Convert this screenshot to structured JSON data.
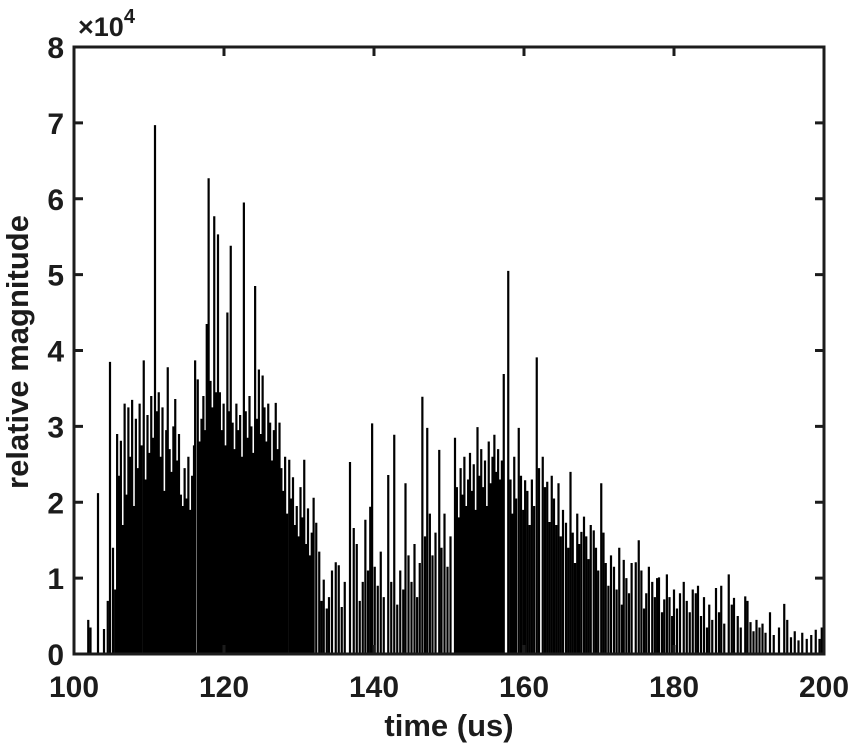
{
  "chart_data": {
    "type": "stem",
    "title": "",
    "xlabel": "time (us)",
    "ylabel": "relative magnitude",
    "y_axis_multiplier": {
      "prefix": "×10",
      "exponent": "4"
    },
    "xlim": [
      100,
      200
    ],
    "ylim": [
      0,
      8
    ],
    "y_unit_scale": 10000,
    "x_ticks": [
      100,
      120,
      140,
      160,
      180,
      200
    ],
    "y_ticks": [
      0,
      1,
      2,
      3,
      4,
      5,
      6,
      7,
      8
    ],
    "grid": false,
    "legend": null,
    "colors": {
      "line": "#000000",
      "axis": "#1c1c1c",
      "background": "#ffffff"
    },
    "points": [
      [
        101.9,
        0.45
      ],
      [
        102.2,
        0.35
      ],
      [
        103.2,
        2.12
      ],
      [
        104.0,
        0.33
      ],
      [
        104.5,
        0.7
      ],
      [
        104.8,
        3.85
      ],
      [
        105.2,
        1.4
      ],
      [
        105.5,
        0.85
      ],
      [
        105.75,
        2.9
      ],
      [
        106.0,
        2.35
      ],
      [
        106.25,
        2.81
      ],
      [
        106.5,
        1.7
      ],
      [
        106.75,
        3.3
      ],
      [
        107.0,
        2.1
      ],
      [
        107.25,
        3.25
      ],
      [
        107.5,
        2.6
      ],
      [
        107.75,
        3.35
      ],
      [
        108.0,
        1.95
      ],
      [
        108.25,
        3.1
      ],
      [
        108.5,
        2.45
      ],
      [
        108.75,
        3.3
      ],
      [
        109.0,
        2.75
      ],
      [
        109.3,
        3.87
      ],
      [
        109.55,
        2.3
      ],
      [
        109.8,
        3.15
      ],
      [
        110.05,
        2.65
      ],
      [
        110.3,
        3.4
      ],
      [
        110.55,
        2.85
      ],
      [
        110.8,
        6.97
      ],
      [
        111.05,
        3.2
      ],
      [
        111.3,
        3.45
      ],
      [
        111.55,
        2.6
      ],
      [
        111.8,
        3.25
      ],
      [
        112.05,
        2.15
      ],
      [
        112.3,
        2.95
      ],
      [
        112.5,
        3.78
      ],
      [
        112.75,
        2.7
      ],
      [
        113.0,
        2.4
      ],
      [
        113.25,
        3.0
      ],
      [
        113.5,
        3.36
      ],
      [
        113.75,
        2.55
      ],
      [
        114.0,
        2.9
      ],
      [
        114.25,
        2.1
      ],
      [
        114.5,
        1.95
      ],
      [
        114.75,
        2.45
      ],
      [
        115.0,
        2.05
      ],
      [
        115.25,
        2.6
      ],
      [
        115.5,
        1.9
      ],
      [
        115.75,
        2.35
      ],
      [
        116.0,
        2.75
      ],
      [
        116.15,
        3.87
      ],
      [
        116.5,
        3.62
      ],
      [
        116.75,
        2.8
      ],
      [
        117.0,
        3.1
      ],
      [
        117.25,
        3.4
      ],
      [
        117.5,
        2.95
      ],
      [
        117.7,
        4.35
      ],
      [
        117.95,
        6.27
      ],
      [
        118.2,
        3.6
      ],
      [
        118.45,
        3.25
      ],
      [
        118.7,
        5.77
      ],
      [
        118.95,
        3.45
      ],
      [
        119.2,
        5.53
      ],
      [
        119.45,
        3.45
      ],
      [
        119.7,
        2.95
      ],
      [
        119.95,
        3.3
      ],
      [
        120.2,
        2.75
      ],
      [
        120.45,
        4.5
      ],
      [
        120.7,
        3.2
      ],
      [
        120.9,
        5.38
      ],
      [
        121.15,
        3.05
      ],
      [
        121.4,
        2.7
      ],
      [
        121.65,
        3.3
      ],
      [
        121.9,
        2.95
      ],
      [
        122.15,
        3.15
      ],
      [
        122.4,
        2.6
      ],
      [
        122.65,
        5.95
      ],
      [
        122.9,
        3.2
      ],
      [
        123.15,
        2.85
      ],
      [
        123.4,
        3.4
      ],
      [
        123.65,
        3.0
      ],
      [
        123.9,
        2.65
      ],
      [
        124.15,
        4.85
      ],
      [
        124.4,
        3.1
      ],
      [
        124.65,
        3.75
      ],
      [
        124.9,
        2.9
      ],
      [
        125.15,
        3.67
      ],
      [
        125.4,
        3.25
      ],
      [
        125.65,
        2.8
      ],
      [
        125.9,
        3.3
      ],
      [
        126.15,
        3.05
      ],
      [
        126.4,
        2.55
      ],
      [
        126.65,
        2.95
      ],
      [
        126.9,
        3.31
      ],
      [
        127.15,
        2.7
      ],
      [
        127.4,
        3.05
      ],
      [
        127.65,
        2.45
      ],
      [
        127.9,
        2.15
      ],
      [
        128.15,
        2.6
      ],
      [
        128.4,
        1.85
      ],
      [
        128.7,
        2.56
      ],
      [
        128.95,
        2.05
      ],
      [
        129.2,
        2.33
      ],
      [
        129.45,
        1.7
      ],
      [
        129.7,
        1.95
      ],
      [
        129.95,
        1.55
      ],
      [
        130.2,
        2.2
      ],
      [
        130.45,
        1.8
      ],
      [
        130.7,
        2.56
      ],
      [
        130.95,
        1.45
      ],
      [
        131.2,
        1.92
      ],
      [
        131.45,
        1.3
      ],
      [
        131.7,
        1.6
      ],
      [
        131.95,
        2.06
      ],
      [
        132.3,
        1.73
      ],
      [
        132.7,
        1.35
      ],
      [
        133.0,
        0.7
      ],
      [
        133.3,
        0.98
      ],
      [
        133.7,
        0.6
      ],
      [
        134.0,
        0.75
      ],
      [
        134.4,
        1.1
      ],
      [
        134.9,
        1.21
      ],
      [
        135.3,
        1.17
      ],
      [
        135.7,
        0.62
      ],
      [
        136.1,
        0.95
      ],
      [
        136.8,
        2.53
      ],
      [
        137.3,
        1.66
      ],
      [
        137.7,
        1.45
      ],
      [
        138.1,
        0.7
      ],
      [
        138.5,
        0.95
      ],
      [
        138.85,
        1.77
      ],
      [
        139.2,
        1.1
      ],
      [
        139.5,
        1.94
      ],
      [
        139.75,
        3.04
      ],
      [
        140.1,
        1.15
      ],
      [
        140.5,
        0.9
      ],
      [
        140.9,
        1.35
      ],
      [
        141.3,
        0.75
      ],
      [
        141.9,
        2.36
      ],
      [
        142.3,
        0.95
      ],
      [
        142.7,
        2.89
      ],
      [
        143.1,
        0.65
      ],
      [
        143.5,
        1.1
      ],
      [
        143.9,
        0.85
      ],
      [
        144.2,
        2.25
      ],
      [
        144.6,
        1.3
      ],
      [
        145.0,
        0.95
      ],
      [
        145.4,
        1.45
      ],
      [
        145.75,
        0.75
      ],
      [
        146.1,
        1.2
      ],
      [
        146.45,
        3.39
      ],
      [
        146.8,
        1.55
      ],
      [
        147.1,
        2.98
      ],
      [
        147.45,
        1.85
      ],
      [
        147.8,
        1.3
      ],
      [
        148.2,
        1.6
      ],
      [
        148.7,
        2.69
      ],
      [
        149.0,
        1.4
      ],
      [
        149.4,
        1.85
      ],
      [
        149.8,
        1.15
      ],
      [
        150.2,
        1.55
      ],
      [
        150.8,
        2.85
      ],
      [
        151.05,
        2.2
      ],
      [
        151.3,
        1.8
      ],
      [
        151.55,
        2.45
      ],
      [
        151.8,
        2.1
      ],
      [
        152.05,
        2.6
      ],
      [
        152.3,
        1.95
      ],
      [
        152.55,
        2.3
      ],
      [
        152.8,
        2.65
      ],
      [
        153.05,
        2.15
      ],
      [
        153.3,
        2.5
      ],
      [
        153.55,
        1.9
      ],
      [
        153.8,
        2.99
      ],
      [
        154.05,
        2.35
      ],
      [
        154.3,
        2.7
      ],
      [
        154.55,
        2.2
      ],
      [
        154.8,
        2.55
      ],
      [
        155.05,
        1.95
      ],
      [
        155.3,
        2.8
      ],
      [
        155.55,
        2.25
      ],
      [
        155.8,
        2.6
      ],
      [
        156.05,
        2.89
      ],
      [
        156.3,
        2.4
      ],
      [
        156.55,
        2.7
      ],
      [
        156.8,
        2.3
      ],
      [
        157.05,
        2.55
      ],
      [
        157.3,
        3.69
      ],
      [
        157.9,
        5.05
      ],
      [
        158.2,
        2.3
      ],
      [
        158.45,
        1.85
      ],
      [
        158.7,
        2.6
      ],
      [
        158.95,
        2.05
      ],
      [
        159.3,
        2.98
      ],
      [
        159.6,
        2.35
      ],
      [
        159.9,
        1.9
      ],
      [
        160.15,
        2.29
      ],
      [
        160.45,
        2.15
      ],
      [
        160.75,
        1.7
      ],
      [
        161.05,
        2.3
      ],
      [
        161.35,
        1.95
      ],
      [
        161.7,
        3.91
      ],
      [
        162.0,
        2.45
      ],
      [
        162.5,
        2.6
      ],
      [
        162.8,
        2.2
      ],
      [
        163.1,
        2.27
      ],
      [
        163.4,
        1.74
      ],
      [
        163.7,
        2.35
      ],
      [
        164.0,
        2.05
      ],
      [
        164.3,
        1.7
      ],
      [
        164.6,
        2.25
      ],
      [
        164.9,
        1.55
      ],
      [
        165.2,
        1.9
      ],
      [
        165.6,
        1.73
      ],
      [
        165.9,
        1.4
      ],
      [
        166.2,
        2.4
      ],
      [
        166.5,
        1.6
      ],
      [
        166.8,
        1.2
      ],
      [
        167.1,
        1.85
      ],
      [
        167.35,
        1.45
      ],
      [
        167.65,
        1.61
      ],
      [
        168.0,
        1.81
      ],
      [
        168.3,
        1.55
      ],
      [
        168.6,
        1.25
      ],
      [
        168.9,
        1.7
      ],
      [
        169.3,
        1.63
      ],
      [
        169.6,
        1.4
      ],
      [
        169.9,
        1.1
      ],
      [
        170.3,
        2.25
      ],
      [
        170.6,
        1.6
      ],
      [
        170.9,
        1.2
      ],
      [
        171.25,
        0.9
      ],
      [
        171.6,
        1.3
      ],
      [
        172.0,
        1.15
      ],
      [
        172.35,
        0.85
      ],
      [
        172.7,
        1.4
      ],
      [
        173.05,
        0.65
      ],
      [
        173.3,
        1.24
      ],
      [
        173.65,
        1.0
      ],
      [
        174.0,
        0.8
      ],
      [
        174.35,
        1.2
      ],
      [
        174.9,
        1.21
      ],
      [
        175.3,
        1.5
      ],
      [
        175.65,
        1.1
      ],
      [
        176.0,
        0.6
      ],
      [
        176.3,
        0.8
      ],
      [
        176.65,
        1.15
      ],
      [
        177.1,
        0.95
      ],
      [
        177.45,
        0.75
      ],
      [
        177.75,
        1.0
      ],
      [
        178.0,
        1.01
      ],
      [
        178.4,
        0.55
      ],
      [
        178.7,
        0.72
      ],
      [
        179.05,
        1.05
      ],
      [
        179.4,
        0.75
      ],
      [
        179.75,
        0.5
      ],
      [
        180.0,
        0.85
      ],
      [
        180.4,
        0.6
      ],
      [
        180.8,
        0.8
      ],
      [
        181.3,
        0.95
      ],
      [
        181.7,
        0.7
      ],
      [
        182.1,
        0.55
      ],
      [
        182.5,
        0.85
      ],
      [
        182.9,
        0.8
      ],
      [
        183.2,
        0.9
      ],
      [
        183.6,
        0.5
      ],
      [
        184.0,
        0.75
      ],
      [
        184.4,
        0.35
      ],
      [
        184.7,
        0.65
      ],
      [
        185.1,
        0.45
      ],
      [
        185.6,
        0.87
      ],
      [
        186.0,
        0.55
      ],
      [
        186.3,
        0.9
      ],
      [
        186.7,
        0.4
      ],
      [
        187.3,
        1.05
      ],
      [
        187.7,
        0.65
      ],
      [
        188.0,
        0.74
      ],
      [
        188.5,
        0.5
      ],
      [
        188.9,
        0.35
      ],
      [
        189.5,
        0.76
      ],
      [
        189.8,
        0.7
      ],
      [
        190.2,
        0.42
      ],
      [
        190.6,
        0.3
      ],
      [
        191.0,
        0.45
      ],
      [
        191.4,
        0.35
      ],
      [
        191.8,
        0.4
      ],
      [
        192.2,
        0.28
      ],
      [
        192.8,
        0.55
      ],
      [
        193.3,
        0.25
      ],
      [
        194.0,
        0.35
      ],
      [
        194.7,
        0.66
      ],
      [
        195.1,
        0.45
      ],
      [
        195.6,
        0.22
      ],
      [
        196.1,
        0.3
      ],
      [
        196.6,
        0.18
      ],
      [
        197.1,
        0.28
      ],
      [
        197.7,
        0.2
      ],
      [
        198.3,
        0.25
      ],
      [
        198.9,
        0.32
      ],
      [
        199.4,
        0.2
      ],
      [
        199.7,
        0.35
      ]
    ]
  }
}
